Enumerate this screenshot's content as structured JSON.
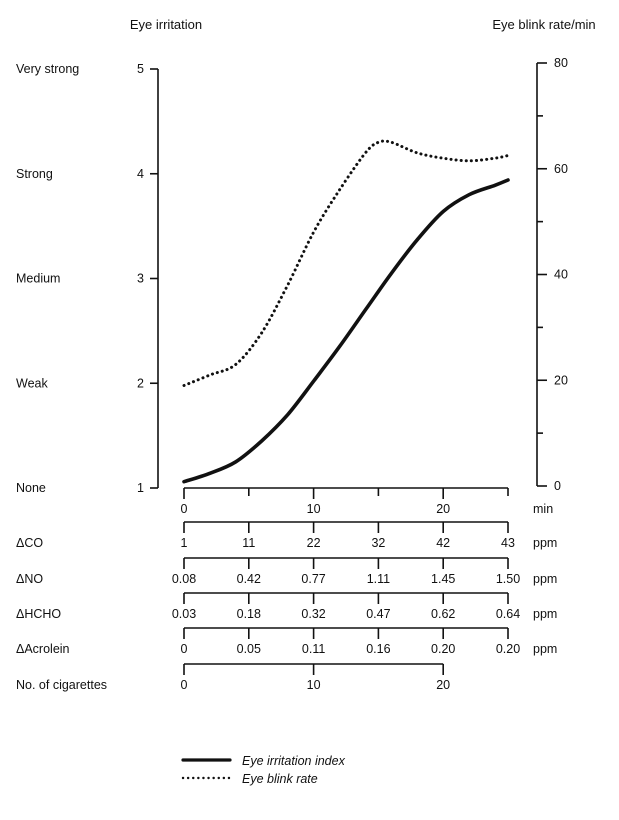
{
  "chart_data": {
    "type": "line",
    "left_axis": {
      "title": "Eye irritation",
      "range": [
        1,
        5
      ],
      "ticks": [
        {
          "value": 1,
          "label": "1",
          "category": "None"
        },
        {
          "value": 2,
          "label": "2",
          "category": "Weak"
        },
        {
          "value": 3,
          "label": "3",
          "category": "Medium"
        },
        {
          "value": 4,
          "label": "4",
          "category": "Strong"
        },
        {
          "value": 5,
          "label": "5",
          "category": "Very strong"
        }
      ]
    },
    "right_axis": {
      "title": "Eye blink rate/min",
      "range": [
        0,
        80
      ],
      "major_ticks": [
        "0",
        "20",
        "40",
        "60",
        "80"
      ],
      "major_values": [
        0,
        20,
        40,
        60,
        80
      ],
      "minor_values": [
        10,
        30,
        50,
        70
      ]
    },
    "x_axes": [
      {
        "name": "",
        "unit": "min",
        "range": [
          0,
          25
        ],
        "positions": [
          0,
          5,
          10,
          15,
          20,
          25
        ],
        "labels": [
          "0",
          "",
          "10",
          "",
          "20",
          ""
        ]
      },
      {
        "name": "ΔCO",
        "unit": "ppm",
        "range": [
          0,
          25
        ],
        "positions": [
          0,
          5,
          10,
          15,
          20,
          25
        ],
        "labels": [
          "1",
          "11",
          "22",
          "32",
          "42",
          "43"
        ]
      },
      {
        "name": "ΔNO",
        "unit": "ppm",
        "range": [
          0,
          25
        ],
        "positions": [
          0,
          5,
          10,
          15,
          20,
          25
        ],
        "labels": [
          "0.08",
          "0.42",
          "0.77",
          "1.11",
          "1.45",
          "1.50"
        ]
      },
      {
        "name": "ΔHCHO",
        "unit": "ppm",
        "range": [
          0,
          25
        ],
        "positions": [
          0,
          5,
          10,
          15,
          20,
          25
        ],
        "labels": [
          "0.03",
          "0.18",
          "0.32",
          "0.47",
          "0.62",
          "0.64"
        ]
      },
      {
        "name": "ΔAcrolein",
        "unit": "ppm",
        "range": [
          0,
          25
        ],
        "positions": [
          0,
          5,
          10,
          15,
          20,
          25
        ],
        "labels": [
          "0",
          "0.05",
          "0.11",
          "0.16",
          "0.20",
          "0.20"
        ]
      },
      {
        "name": "No. of cigarettes",
        "unit": "",
        "range": [
          0,
          25
        ],
        "positions": [
          0,
          10,
          20
        ],
        "labels": [
          "0",
          "10",
          "20"
        ]
      }
    ],
    "series": [
      {
        "name": "Eye irritation index",
        "style": "solid",
        "axis": "left",
        "x": [
          0,
          2,
          4,
          6,
          8,
          10,
          12,
          14,
          16,
          18,
          20,
          22,
          24,
          25
        ],
        "y": [
          1.06,
          1.14,
          1.25,
          1.45,
          1.7,
          2.02,
          2.35,
          2.7,
          3.05,
          3.37,
          3.64,
          3.8,
          3.89,
          3.94
        ]
      },
      {
        "name": "Eye blink rate",
        "style": "dotted",
        "axis": "right",
        "x": [
          0,
          2,
          4,
          6,
          8,
          10,
          12,
          14,
          15,
          16,
          18,
          20,
          22,
          24,
          25
        ],
        "y": [
          19,
          21,
          23,
          29,
          38,
          48,
          56,
          63,
          65,
          65,
          63,
          62,
          61.5,
          62,
          62.5
        ]
      }
    ],
    "legend": {
      "position": "bottom",
      "entries": [
        {
          "label": "Eye irritation index",
          "style": "solid"
        },
        {
          "label": "Eye blink rate",
          "style": "dotted"
        }
      ]
    }
  }
}
